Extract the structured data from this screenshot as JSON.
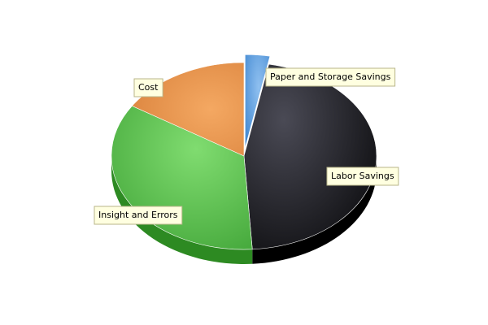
{
  "chart_data": {
    "type": "pie",
    "title": "",
    "categories": [
      "Paper and Storage Savings",
      "Labor Savings",
      "Insight and Errors",
      "Cost"
    ],
    "values": [
      3,
      46,
      35,
      16
    ],
    "exploded": [
      "Paper and Storage Savings"
    ],
    "legend": "none",
    "colors": {
      "Paper and Storage Savings": "#5b9bdc",
      "Labor Savings": "#2a2a30",
      "Insight and Errors": "#62c455",
      "Cost": "#ec9650"
    }
  }
}
